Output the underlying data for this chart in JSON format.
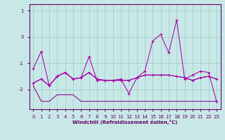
{
  "xlabel": "Windchill (Refroidissement éolien,°C)",
  "bg_color": "#c8e8e8",
  "grid_color": "#99ccbb",
  "line_color": "#aa00aa",
  "hours": [
    0,
    1,
    2,
    3,
    4,
    5,
    6,
    7,
    8,
    9,
    10,
    11,
    12,
    13,
    14,
    15,
    16,
    17,
    18,
    19,
    20,
    21,
    22,
    23
  ],
  "series_a": [
    -1.2,
    -0.55,
    -1.85,
    -1.5,
    -1.35,
    -1.6,
    -1.55,
    -0.75,
    -1.65,
    -1.65,
    -1.65,
    -1.6,
    -2.15,
    -1.55,
    -1.3,
    -0.15,
    0.1,
    -0.6,
    0.65,
    -1.6,
    -1.45,
    -1.3,
    -1.35,
    -2.45
  ],
  "series_b": [
    -1.75,
    -1.6,
    -1.85,
    -1.5,
    -1.35,
    -1.6,
    -1.55,
    -1.35,
    -1.6,
    -1.65,
    -1.65,
    -1.65,
    -1.65,
    -1.55,
    -1.45,
    -1.45,
    -1.45,
    -1.45,
    -1.5,
    -1.55,
    -1.65,
    -1.55,
    -1.5,
    -1.6
  ],
  "series_c": [
    -1.75,
    -1.6,
    -1.85,
    -1.5,
    -1.35,
    -1.6,
    -1.55,
    -1.35,
    -1.6,
    -1.65,
    -1.65,
    -1.65,
    -1.65,
    -1.55,
    -1.45,
    -1.45,
    -1.45,
    -1.45,
    -1.5,
    -1.55,
    -1.65,
    -1.55,
    -1.5,
    -1.6
  ],
  "series_d": [
    -1.85,
    -2.45,
    -2.45,
    -2.2,
    -2.2,
    -2.2,
    -2.45,
    -2.45,
    -2.45,
    -2.45,
    -2.45,
    -2.45,
    -2.45,
    -2.45,
    -2.45,
    -2.45,
    -2.45,
    -2.45,
    -2.45,
    -2.45,
    -2.45,
    -2.45,
    -2.45,
    -2.45
  ],
  "ylim": [
    -2.75,
    1.25
  ],
  "xlim": [
    -0.5,
    23.5
  ],
  "yticks": [
    -2,
    -1,
    0,
    1
  ]
}
